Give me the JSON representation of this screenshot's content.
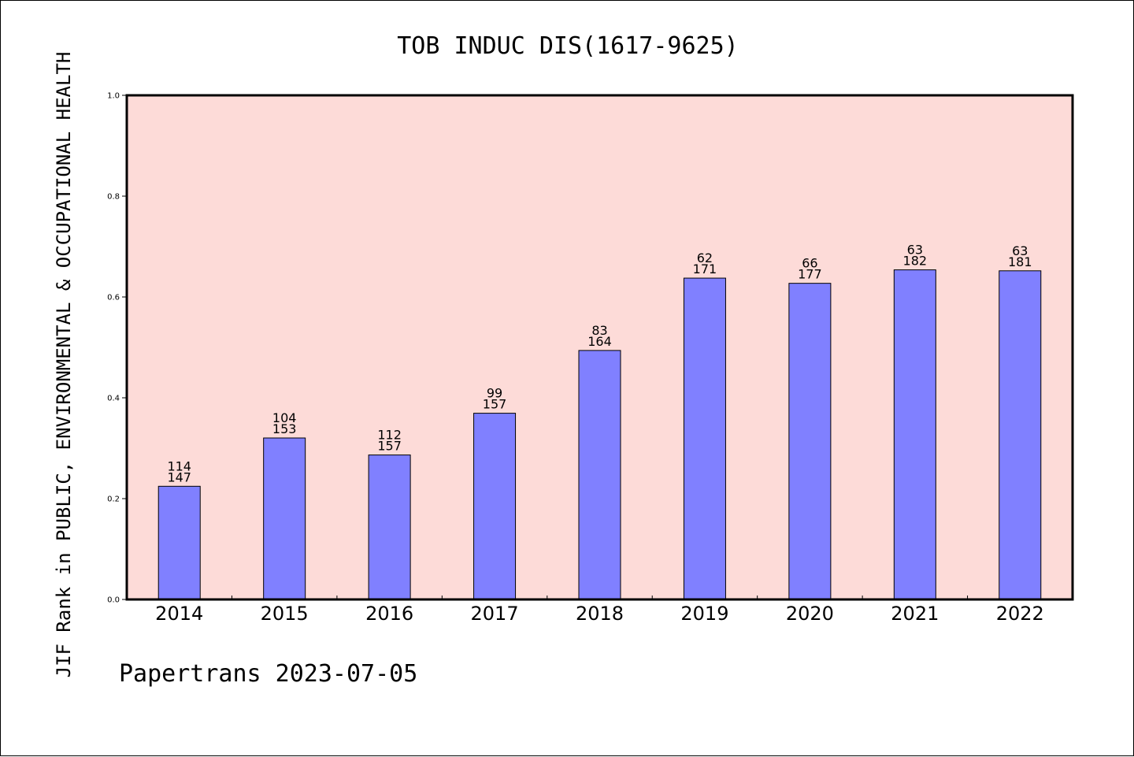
{
  "chart_data": {
    "type": "bar",
    "title": "TOB INDUC DIS(1617-9625)",
    "ylabel": "JIF Rank in PUBLIC, ENVIRONMENTAL & OCCUPATIONAL HEALTH",
    "xlabel": "",
    "categories": [
      "2014",
      "2015",
      "2016",
      "2017",
      "2018",
      "2019",
      "2020",
      "2021",
      "2022"
    ],
    "values": [
      0.2245,
      0.3203,
      0.2866,
      0.3694,
      0.4939,
      0.6374,
      0.6271,
      0.6538,
      0.6519
    ],
    "rank_labels": [
      "114",
      "104",
      "112",
      "99",
      "83",
      "62",
      "66",
      "63",
      "63"
    ],
    "total_labels": [
      "147",
      "153",
      "157",
      "157",
      "164",
      "171",
      "177",
      "182",
      "181"
    ],
    "ylim": [
      0.0,
      1.0
    ],
    "yticks": [
      "0.0",
      "0.2",
      "0.4",
      "0.6",
      "0.8",
      "1.0"
    ],
    "grid": false,
    "colors": {
      "plot_background": "#fddbd8",
      "bar_fill": "#8080ff",
      "bar_edge": "#000000"
    }
  },
  "footer": {
    "text": "Papertrans 2023-07-05"
  }
}
